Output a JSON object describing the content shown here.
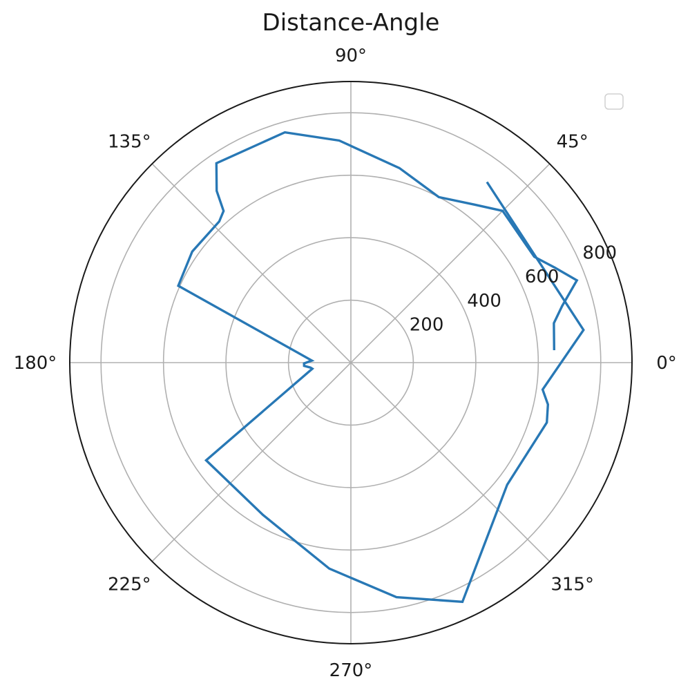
{
  "chart_data": {
    "type": "line",
    "projection": "polar",
    "title": "Distance-Angle",
    "theta_unit": "degrees",
    "theta_ticks": [
      0,
      45,
      90,
      135,
      180,
      225,
      270,
      315
    ],
    "theta_tick_labels": [
      "0°",
      "45°",
      "90°",
      "135°",
      "180°",
      "225°",
      "270°",
      "315°"
    ],
    "r_ticks": [
      200,
      400,
      600,
      800
    ],
    "r_tick_labels": [
      "200",
      "400",
      "600",
      "800"
    ],
    "r_label_angle_deg": 22.5,
    "rlim": [
      0,
      900
    ],
    "grid": true,
    "legend": {
      "placement": "upper right",
      "entries": []
    },
    "series": [
      {
        "color": "#2878b5",
        "theta": [
          3.5,
          11,
          15,
          20,
          25,
          30,
          45,
          52,
          62,
          76,
          93,
          106,
          124,
          128,
          130,
          133,
          145,
          156,
          177,
          181,
          184,
          187,
          189,
          214,
          240,
          264,
          281,
          295,
          322,
          343,
          348,
          352,
          8,
          53
        ],
        "r": [
          652,
          662,
          700,
          770,
          720,
          678,
          687,
          642,
          600,
          642,
          712,
          767,
          770,
          698,
          634,
          618,
          620,
          605,
          125,
          150,
          150,
          130,
          125,
          559,
          563,
          663,
          765,
          845,
          635,
          656,
          645,
          620,
          752,
          724
        ]
      }
    ]
  }
}
